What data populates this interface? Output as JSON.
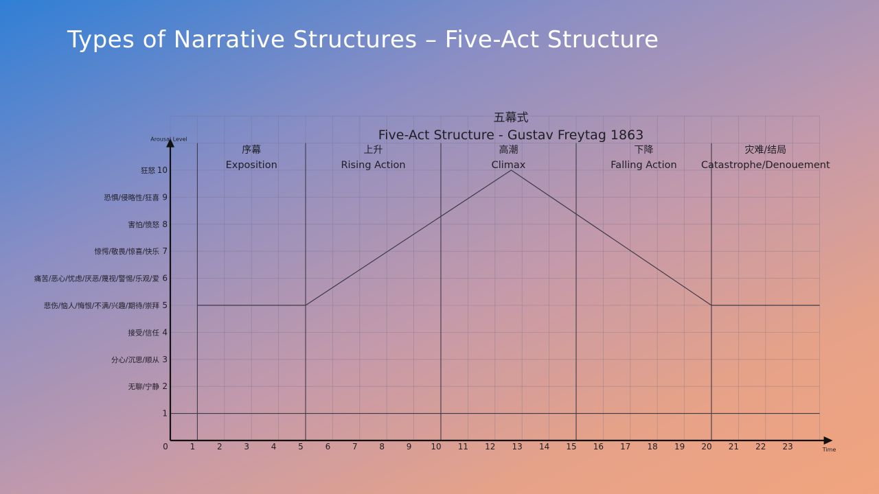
{
  "slide": {
    "title": "Types of Narrative Structures – Five-Act Structure"
  },
  "chart_data": {
    "type": "line",
    "title": "五幕式",
    "subtitle": "Five-Act Structure - Gustav Freytag 1863",
    "ylabel": "Arousal Level",
    "xlabel": "Time",
    "xlim": [
      0,
      24
    ],
    "ylim": [
      0,
      10
    ],
    "grid": true,
    "x_ticks": [
      0,
      1,
      2,
      3,
      4,
      5,
      6,
      7,
      8,
      9,
      10,
      11,
      12,
      13,
      14,
      15,
      16,
      17,
      18,
      19,
      20,
      21,
      22,
      23
    ],
    "y_ticks": [
      {
        "value": 1,
        "label": "1",
        "emotion": ""
      },
      {
        "value": 2,
        "label": "2",
        "emotion": "无聊/宁静"
      },
      {
        "value": 3,
        "label": "3",
        "emotion": "分心/沉思/顺从"
      },
      {
        "value": 4,
        "label": "4",
        "emotion": "接受/信任"
      },
      {
        "value": 5,
        "label": "5",
        "emotion": "悲伤/恼人/悔恨/不满/兴趣/期待/崇拜"
      },
      {
        "value": 6,
        "label": "6",
        "emotion": "痛苦/恶心/忧虑/厌恶/蔑视/警惕/乐观/爱"
      },
      {
        "value": 7,
        "label": "7",
        "emotion": "惊愕/敬畏/惊喜/快乐"
      },
      {
        "value": 8,
        "label": "8",
        "emotion": "害怕/愤怒"
      },
      {
        "value": 9,
        "label": "9",
        "emotion": "恐惧/侵略性/狂喜"
      },
      {
        "value": 10,
        "label": "10",
        "emotion": "狂怒"
      }
    ],
    "acts": [
      {
        "cn": "序幕",
        "en": "Exposition",
        "start": 1,
        "end": 5
      },
      {
        "cn": "上升",
        "en": "Rising Action",
        "start": 5,
        "end": 10
      },
      {
        "cn": "高潮",
        "en": "Climax",
        "start": 10,
        "end": 15
      },
      {
        "cn": "下降",
        "en": "Falling Action",
        "start": 15,
        "end": 20
      },
      {
        "cn": "灾难/结局",
        "en": "Catastrophe/Denouement",
        "start": 20,
        "end": 24
      }
    ],
    "act_dividers": [
      1,
      5,
      10,
      15,
      20
    ],
    "baseline": 1,
    "series": [
      {
        "x": [
          1,
          5,
          12.6,
          20,
          24
        ],
        "y": [
          5,
          5,
          10,
          5,
          5
        ]
      }
    ]
  }
}
